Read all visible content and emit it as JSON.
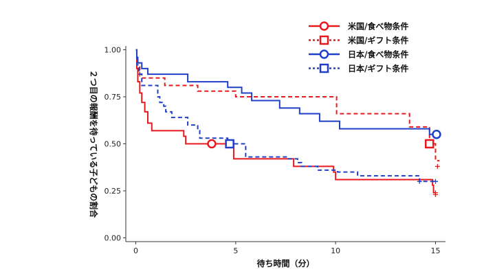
{
  "chart_data": {
    "type": "line",
    "subtype": "step (Kaplan-Meier style)",
    "xlabel": "待ち時間（分）",
    "ylabel": "２つ目の報酬を待っている子どもの割合",
    "xlim": [
      -0.5,
      15.5
    ],
    "ylim": [
      -0.02,
      1.02
    ],
    "x_ticks": [
      0,
      5,
      10,
      15
    ],
    "y_ticks": [
      0.0,
      0.25,
      0.5,
      0.75,
      1.0
    ],
    "x_tick_labels": [
      "0",
      "5",
      "10",
      "15"
    ],
    "y_tick_labels": [
      "0.00",
      "0.25",
      "0.50",
      "0.75",
      "1.00"
    ],
    "legend_position": "top-right",
    "series": [
      {
        "name": "米国/食べ物条件",
        "color": "#e8191d",
        "linestyle": "solid",
        "marker": "circle",
        "median_marker": [
          3.8,
          0.5
        ],
        "censor_marks": [
          [
            15.0,
            0.24
          ]
        ],
        "steps": [
          [
            0,
            1.0
          ],
          [
            0.05,
            0.9
          ],
          [
            0.1,
            0.83
          ],
          [
            0.2,
            0.77
          ],
          [
            0.3,
            0.72
          ],
          [
            0.45,
            0.67
          ],
          [
            0.6,
            0.61
          ],
          [
            0.8,
            0.57
          ],
          [
            1.0,
            0.57
          ],
          [
            2.4,
            0.54
          ],
          [
            2.5,
            0.5
          ],
          [
            4.6,
            0.5
          ],
          [
            4.9,
            0.42
          ],
          [
            7.8,
            0.42
          ],
          [
            7.9,
            0.38
          ],
          [
            9.8,
            0.38
          ],
          [
            9.9,
            0.35
          ],
          [
            10.0,
            0.31
          ],
          [
            14.8,
            0.31
          ],
          [
            14.85,
            0.28
          ],
          [
            14.9,
            0.24
          ],
          [
            15.0,
            0.24
          ]
        ]
      },
      {
        "name": "米国/ギフト条件",
        "color": "#e8191d",
        "linestyle": "dotted",
        "marker": "square",
        "median_marker": [
          14.7,
          0.5
        ],
        "censor_marks": [
          [
            0.2,
            0.87
          ],
          [
            15.1,
            0.38
          ],
          [
            15.0,
            0.23
          ]
        ],
        "steps": [
          [
            0,
            1.0
          ],
          [
            0.05,
            0.93
          ],
          [
            0.2,
            0.87
          ],
          [
            0.3,
            0.85
          ],
          [
            1.4,
            0.85
          ],
          [
            1.45,
            0.81
          ],
          [
            3.0,
            0.81
          ],
          [
            3.1,
            0.78
          ],
          [
            4.9,
            0.78
          ],
          [
            5.0,
            0.75
          ],
          [
            10.0,
            0.75
          ],
          [
            10.05,
            0.66
          ],
          [
            13.6,
            0.66
          ],
          [
            13.7,
            0.59
          ],
          [
            14.6,
            0.59
          ],
          [
            14.7,
            0.5
          ],
          [
            15.0,
            0.5
          ],
          [
            15.0,
            0.41
          ],
          [
            15.2,
            0.41
          ]
        ]
      },
      {
        "name": "日本/食べ物条件",
        "color": "#1f3fc8",
        "linestyle": "solid",
        "marker": "circle",
        "median_marker": [
          15.05,
          0.55
        ],
        "censor_marks": [],
        "steps": [
          [
            0,
            1.0
          ],
          [
            0.05,
            0.96
          ],
          [
            0.1,
            0.93
          ],
          [
            0.3,
            0.9
          ],
          [
            0.6,
            0.87
          ],
          [
            2.5,
            0.87
          ],
          [
            2.6,
            0.83
          ],
          [
            4.5,
            0.83
          ],
          [
            4.6,
            0.8
          ],
          [
            5.0,
            0.8
          ],
          [
            5.3,
            0.77
          ],
          [
            5.8,
            0.73
          ],
          [
            7.0,
            0.73
          ],
          [
            7.2,
            0.69
          ],
          [
            8.0,
            0.69
          ],
          [
            8.2,
            0.66
          ],
          [
            9.0,
            0.66
          ],
          [
            9.2,
            0.62
          ],
          [
            10.0,
            0.62
          ],
          [
            10.2,
            0.58
          ],
          [
            14.6,
            0.58
          ],
          [
            14.7,
            0.55
          ],
          [
            15.05,
            0.55
          ]
        ]
      },
      {
        "name": "日本/ギフト条件",
        "color": "#1f3fc8",
        "linestyle": "dotted",
        "marker": "square",
        "median_marker": [
          4.7,
          0.5
        ],
        "censor_marks": [
          [
            15.0,
            0.3
          ],
          [
            14.2,
            0.3
          ]
        ],
        "steps": [
          [
            0,
            1.0
          ],
          [
            0.05,
            0.92
          ],
          [
            0.15,
            0.87
          ],
          [
            0.3,
            0.81
          ],
          [
            1.0,
            0.81
          ],
          [
            1.1,
            0.75
          ],
          [
            1.2,
            0.72
          ],
          [
            1.4,
            0.7
          ],
          [
            1.5,
            0.67
          ],
          [
            1.8,
            0.64
          ],
          [
            2.5,
            0.64
          ],
          [
            2.6,
            0.6
          ],
          [
            3.0,
            0.6
          ],
          [
            3.1,
            0.57
          ],
          [
            3.2,
            0.53
          ],
          [
            4.5,
            0.53
          ],
          [
            4.6,
            0.5
          ],
          [
            5.4,
            0.5
          ],
          [
            5.5,
            0.43
          ],
          [
            7.5,
            0.43
          ],
          [
            7.6,
            0.42
          ],
          [
            8.0,
            0.42
          ],
          [
            8.1,
            0.4
          ],
          [
            8.3,
            0.38
          ],
          [
            9.0,
            0.38
          ],
          [
            9.1,
            0.36
          ],
          [
            10.0,
            0.36
          ],
          [
            10.1,
            0.35
          ],
          [
            11.0,
            0.35
          ],
          [
            11.1,
            0.33
          ],
          [
            14.1,
            0.33
          ],
          [
            14.2,
            0.3
          ],
          [
            15.1,
            0.3
          ]
        ]
      }
    ]
  }
}
